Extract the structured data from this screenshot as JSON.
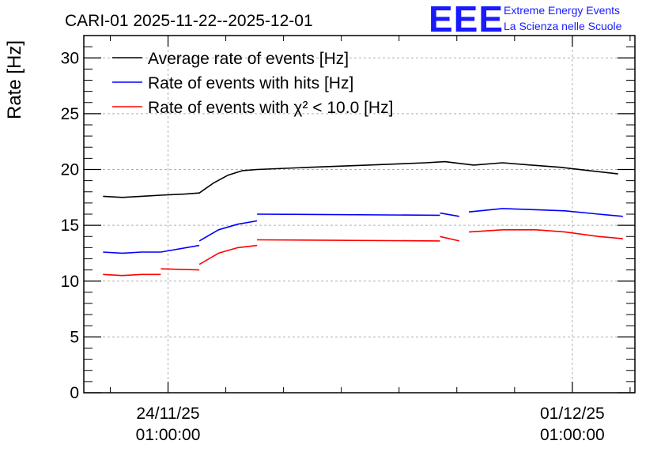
{
  "chart_data": {
    "type": "line",
    "title": "CARI-01 2025-11-22--2025-12-01",
    "ylabel": "Rate [Hz]",
    "xlabel": "",
    "xlim": [
      "2025-11-22 14:00",
      "2025-12-02 03:00"
    ],
    "ylim": [
      0,
      32
    ],
    "y_ticks": [
      0,
      5,
      10,
      15,
      20,
      25,
      30
    ],
    "x_ticks": [
      {
        "value": "2025-11-24 01:00",
        "label_date": "24/11/25",
        "label_time": "01:00:00"
      },
      {
        "value": "2025-12-01 01:00",
        "label_date": "01/12/25",
        "label_time": "01:00:00"
      }
    ],
    "grid": true,
    "legend_placement": "top-left",
    "series": [
      {
        "name": "Average rate of events [Hz]",
        "color": "#000000",
        "segments": [
          [
            [
              "2025-11-22 22:00",
              17.6
            ],
            [
              "2025-11-23 06:00",
              17.5
            ],
            [
              "2025-11-23 14:00",
              17.6
            ],
            [
              "2025-11-23 22:00",
              17.7
            ],
            [
              "2025-11-24 08:00",
              17.8
            ],
            [
              "2025-11-24 14:00",
              17.9
            ],
            [
              "2025-11-24 20:00",
              18.8
            ],
            [
              "2025-11-25 02:00",
              19.5
            ],
            [
              "2025-11-25 08:00",
              19.9
            ],
            [
              "2025-11-25 14:00",
              20.0
            ],
            [
              "2025-11-26 12:00",
              20.2
            ],
            [
              "2025-11-27 12:00",
              20.4
            ],
            [
              "2025-11-28 12:00",
              20.6
            ],
            [
              "2025-11-28 20:00",
              20.7
            ],
            [
              "2025-11-29 08:00",
              20.4
            ],
            [
              "2025-11-29 20:00",
              20.6
            ],
            [
              "2025-11-30 08:00",
              20.4
            ],
            [
              "2025-11-30 20:00",
              20.2
            ],
            [
              "2025-12-01 08:00",
              19.9
            ],
            [
              "2025-12-01 20:00",
              19.6
            ]
          ]
        ]
      },
      {
        "name": "Rate of events with hits [Hz]",
        "color": "#0000ff",
        "segments": [
          [
            [
              "2025-11-22 22:00",
              12.6
            ],
            [
              "2025-11-23 06:00",
              12.5
            ],
            [
              "2025-11-23 14:00",
              12.6
            ],
            [
              "2025-11-23 22:00",
              12.6
            ]
          ],
          [
            [
              "2025-11-23 22:00",
              12.6
            ],
            [
              "2025-11-24 14:00",
              13.2
            ]
          ],
          [
            [
              "2025-11-24 14:00",
              13.6
            ],
            [
              "2025-11-24 22:00",
              14.6
            ],
            [
              "2025-11-25 06:00",
              15.1
            ],
            [
              "2025-11-25 14:00",
              15.4
            ]
          ],
          [
            [
              "2025-11-25 14:00",
              16.0
            ],
            [
              "2025-11-28 18:00",
              15.9
            ]
          ],
          [
            [
              "2025-11-28 18:00",
              16.1
            ],
            [
              "2025-11-29 02:00",
              15.8
            ]
          ],
          [
            [
              "2025-11-29 06:00",
              16.2
            ],
            [
              "2025-11-29 20:00",
              16.5
            ],
            [
              "2025-11-30 10:00",
              16.4
            ],
            [
              "2025-11-30 22:00",
              16.3
            ],
            [
              "2025-12-01 12:00",
              16.0
            ],
            [
              "2025-12-01 22:00",
              15.8
            ]
          ]
        ]
      },
      {
        "name": "Rate of events with χ² < 10.0 [Hz]",
        "color": "#ff0000",
        "segments": [
          [
            [
              "2025-11-22 22:00",
              10.6
            ],
            [
              "2025-11-23 06:00",
              10.5
            ],
            [
              "2025-11-23 14:00",
              10.6
            ],
            [
              "2025-11-23 22:00",
              10.6
            ]
          ],
          [
            [
              "2025-11-23 22:00",
              11.1
            ],
            [
              "2025-11-24 14:00",
              11.0
            ]
          ],
          [
            [
              "2025-11-24 14:00",
              11.5
            ],
            [
              "2025-11-24 22:00",
              12.5
            ],
            [
              "2025-11-25 06:00",
              13.0
            ],
            [
              "2025-11-25 14:00",
              13.2
            ]
          ],
          [
            [
              "2025-11-25 14:00",
              13.7
            ],
            [
              "2025-11-28 18:00",
              13.6
            ]
          ],
          [
            [
              "2025-11-28 18:00",
              14.0
            ],
            [
              "2025-11-29 02:00",
              13.6
            ]
          ],
          [
            [
              "2025-11-29 06:00",
              14.4
            ],
            [
              "2025-11-29 20:00",
              14.6
            ],
            [
              "2025-11-30 10:00",
              14.6
            ],
            [
              "2025-11-30 22:00",
              14.4
            ],
            [
              "2025-12-01 12:00",
              14.0
            ],
            [
              "2025-12-01 22:00",
              13.8
            ]
          ]
        ]
      }
    ]
  },
  "logo": {
    "mark": "EEE",
    "line1": "Extreme Energy Events",
    "line2": "La Scienza nelle Scuole"
  }
}
